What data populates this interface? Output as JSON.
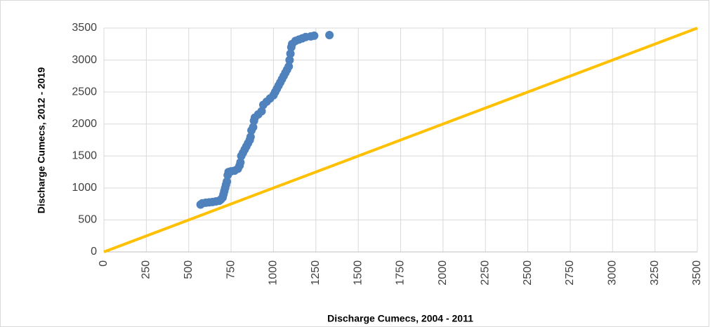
{
  "chart_data": {
    "type": "scatter",
    "xlabel": "Discharge Cumecs, 2004 - 2011",
    "ylabel": "Discharge Cumecs, 2012 - 2019",
    "xlim": [
      0,
      3500
    ],
    "ylim": [
      0,
      3500
    ],
    "xticks": [
      0,
      250,
      500,
      750,
      1000,
      1250,
      1500,
      1750,
      2000,
      2250,
      2500,
      2750,
      3000,
      3250,
      3500
    ],
    "yticks": [
      0,
      500,
      1000,
      1500,
      2000,
      2500,
      3000,
      3500
    ],
    "grid": true,
    "points": {
      "color": "#4f81bd",
      "x": [
        570,
        580,
        600,
        620,
        640,
        660,
        680,
        690,
        700,
        705,
        710,
        715,
        720,
        725,
        730,
        735,
        750,
        770,
        790,
        800,
        805,
        810,
        820,
        830,
        840,
        850,
        860,
        865,
        870,
        880,
        885,
        890,
        910,
        930,
        940,
        960,
        980,
        1000,
        1010,
        1020,
        1030,
        1040,
        1050,
        1060,
        1070,
        1080,
        1090,
        1095,
        1100,
        1105,
        1110,
        1130,
        1150,
        1170,
        1190,
        1220,
        1240,
        1330
      ],
      "y": [
        740,
        760,
        770,
        775,
        780,
        790,
        800,
        820,
        850,
        900,
        950,
        1000,
        1050,
        1100,
        1200,
        1250,
        1260,
        1270,
        1300,
        1350,
        1400,
        1500,
        1550,
        1600,
        1650,
        1700,
        1750,
        1800,
        1900,
        1950,
        2050,
        2100,
        2150,
        2200,
        2300,
        2350,
        2400,
        2450,
        2500,
        2550,
        2600,
        2650,
        2700,
        2750,
        2800,
        2850,
        2900,
        3000,
        3100,
        3200,
        3250,
        3300,
        3320,
        3340,
        3360,
        3370,
        3380,
        3390
      ]
    },
    "line": {
      "color": "#ffc000",
      "x": [
        0,
        3500
      ],
      "y": [
        0,
        3500
      ]
    }
  }
}
